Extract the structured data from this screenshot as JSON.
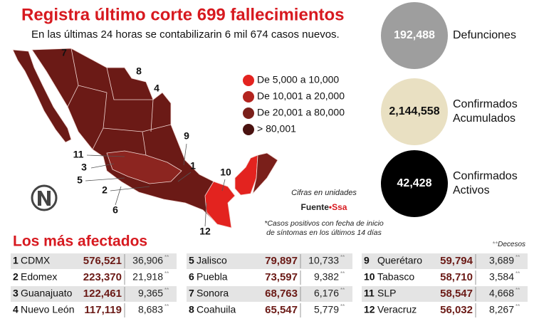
{
  "header": {
    "title": "Registra último corte 699 fallecimientos",
    "subtitle": "En las últimas 24 horas se contabilizarin 6 mil 674 casos nuevos."
  },
  "legend": [
    {
      "label": "De 5,000 a 10,000",
      "color": "#e3231f"
    },
    {
      "label": "De 10,001 a 20,000",
      "color": "#b3241f"
    },
    {
      "label": "De 20,001 a 80,000",
      "color": "#7a1f1a"
    },
    {
      "label": "> 80,001",
      "color": "#4a1210"
    }
  ],
  "map_labels": [
    "7",
    "8",
    "4",
    "9",
    "11",
    "3",
    "5",
    "1",
    "10",
    "2",
    "6",
    "12"
  ],
  "notes": {
    "units": "Cifras en unidades",
    "source_label": "Fuente",
    "separator": "•",
    "source": "Ssa",
    "footnote": [
      "*Casos positivos con fecha de inicio",
      "de síntomas en los últimos 14 días"
    ]
  },
  "stats": [
    {
      "value": "192,488",
      "label": [
        "Defunciones"
      ],
      "color": "#9e9e9e",
      "text_color": "#ffffff"
    },
    {
      "value": "2,144,558",
      "label": [
        "Confirmados",
        "Acumulados"
      ],
      "color": "#e9e0c2",
      "text_color": "#111111"
    },
    {
      "value": "42,428",
      "label": [
        "Confirmados",
        "Activos"
      ],
      "color": "#000000",
      "text_color": "#ffffff"
    }
  ],
  "table": {
    "title": "Los más afectados",
    "marker": "**",
    "deaths_label": "Decesos",
    "columns": [
      [
        {
          "rank": "1",
          "state": "CDMX",
          "cases": "576,521",
          "deaths": "36,906"
        },
        {
          "rank": "2",
          "state": "Edomex",
          "cases": "223,370",
          "deaths": "21,918"
        },
        {
          "rank": "3",
          "state": "Guanajuato",
          "cases": "122,461",
          "deaths": "9,365"
        },
        {
          "rank": "4",
          "state": "Nuevo León",
          "cases": "117,119",
          "deaths": "8,683"
        }
      ],
      [
        {
          "rank": "5",
          "state": "Jalisco",
          "cases": "79,897",
          "deaths": "10,733"
        },
        {
          "rank": "6",
          "state": "Puebla",
          "cases": "73,597",
          "deaths": "9,382"
        },
        {
          "rank": "7",
          "state": "Sonora",
          "cases": "68,763",
          "deaths": "6,176"
        },
        {
          "rank": "8",
          "state": "Coahuila",
          "cases": "65,547",
          "deaths": "5,779"
        }
      ],
      [
        {
          "rank": "9",
          "state": "Querétaro",
          "cases": "59,794",
          "deaths": "3,689"
        },
        {
          "rank": "10",
          "state": "Tabasco",
          "cases": "58,710",
          "deaths": "3,584"
        },
        {
          "rank": "11",
          "state": "SLP",
          "cases": "58,547",
          "deaths": "4,668"
        },
        {
          "rank": "12",
          "state": "Veracruz",
          "cases": "56,032",
          "deaths": "8,267"
        }
      ]
    ]
  }
}
